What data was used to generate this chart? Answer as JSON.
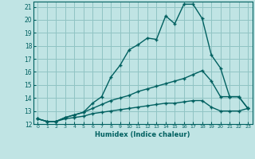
{
  "xlabel": "Humidex (Indice chaleur)",
  "bg_color": "#c0e4e4",
  "grid_color": "#90c4c4",
  "line_color": "#006060",
  "xlim": [
    -0.5,
    23.5
  ],
  "ylim": [
    12,
    21.4
  ],
  "xticks": [
    0,
    1,
    2,
    3,
    4,
    5,
    6,
    7,
    8,
    9,
    10,
    11,
    12,
    13,
    14,
    15,
    16,
    17,
    18,
    19,
    20,
    21,
    22,
    23
  ],
  "yticks": [
    12,
    13,
    14,
    15,
    16,
    17,
    18,
    19,
    20,
    21
  ],
  "line1_x": [
    0,
    1,
    2,
    3,
    4,
    5,
    6,
    7,
    8,
    9,
    10,
    11,
    12,
    13,
    14,
    15,
    16,
    17,
    18,
    19,
    20,
    21,
    22,
    23
  ],
  "line1_y": [
    12.4,
    12.2,
    12.2,
    12.5,
    12.7,
    12.9,
    13.6,
    14.1,
    15.6,
    16.5,
    17.7,
    18.1,
    18.6,
    18.5,
    20.3,
    19.7,
    21.2,
    21.2,
    20.1,
    17.3,
    16.3,
    14.1,
    14.1,
    13.2
  ],
  "line2_x": [
    0,
    1,
    2,
    3,
    4,
    5,
    6,
    7,
    8,
    9,
    10,
    11,
    12,
    13,
    14,
    15,
    16,
    17,
    18,
    19,
    20,
    21,
    22,
    23
  ],
  "line2_y": [
    12.4,
    12.2,
    12.2,
    12.5,
    12.7,
    12.9,
    13.2,
    13.5,
    13.8,
    14.0,
    14.2,
    14.5,
    14.7,
    14.9,
    15.1,
    15.3,
    15.5,
    15.8,
    16.1,
    15.3,
    14.1,
    14.1,
    14.1,
    13.2
  ],
  "line3_x": [
    0,
    1,
    2,
    3,
    4,
    5,
    6,
    7,
    8,
    9,
    10,
    11,
    12,
    13,
    14,
    15,
    16,
    17,
    18,
    19,
    20,
    21,
    22,
    23
  ],
  "line3_y": [
    12.4,
    12.2,
    12.2,
    12.4,
    12.5,
    12.6,
    12.8,
    12.9,
    13.0,
    13.1,
    13.2,
    13.3,
    13.4,
    13.5,
    13.6,
    13.6,
    13.7,
    13.8,
    13.8,
    13.3,
    13.0,
    13.0,
    13.0,
    13.2
  ]
}
